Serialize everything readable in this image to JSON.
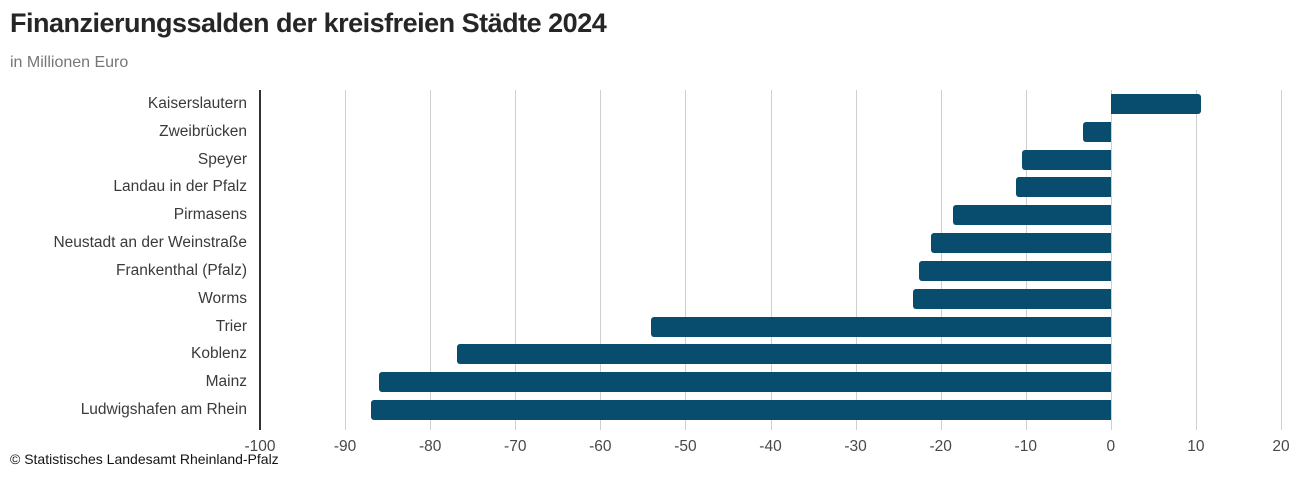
{
  "header": {
    "title": "Finanzierungssalden der kreisfreien Städte 2024",
    "subtitle": "in Millionen Euro"
  },
  "footer": {
    "source": "© Statistisches Landesamt Rheinland-Pfalz"
  },
  "colors": {
    "bar": "#084C6E",
    "gridline": "#cfcfcf",
    "axis_line": "#333333"
  },
  "chart_data": {
    "type": "bar",
    "orientation": "horizontal",
    "title": "Finanzierungssalden der kreisfreien Städte 2024",
    "subtitle": "in Millionen Euro",
    "source": "© Statistisches Landesamt Rheinland-Pfalz",
    "categories": [
      "Kaiserslautern",
      "Zweibrücken",
      "Speyer",
      "Landau in der Pfalz",
      "Pirmasens",
      "Neustadt an der Weinstraße",
      "Frankenthal (Pfalz)",
      "Worms",
      "Trier",
      "Koblenz",
      "Mainz",
      "Ludwigshafen am Rhein"
    ],
    "values": [
      10.6,
      -3.3,
      -10.4,
      -11.2,
      -18.5,
      -21.1,
      -22.5,
      -23.2,
      -54.0,
      -76.9,
      -86.0,
      -86.9
    ],
    "xlabel": "",
    "ylabel": "",
    "xlim": [
      -100,
      20
    ],
    "xticks": [
      -100,
      -90,
      -80,
      -70,
      -60,
      -50,
      -40,
      -30,
      -20,
      -10,
      0,
      10,
      20
    ],
    "grid": "vertical",
    "legend": "none"
  }
}
